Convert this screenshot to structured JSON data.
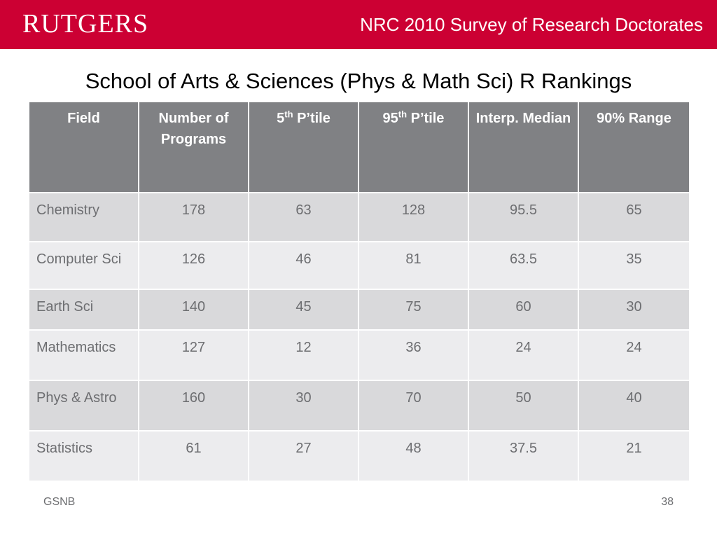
{
  "header": {
    "logo_text": "RUTGERS",
    "title": "NRC 2010 Survey of Research Doctorates"
  },
  "slide": {
    "title": "School of Arts & Sciences (Phys & Math Sci) R Rankings"
  },
  "table": {
    "headers": {
      "field": "Field",
      "programs": "Number of Programs",
      "p5_num": "5",
      "p5_sup": "th",
      "p5_rest": " P’tile",
      "p95_num": "95",
      "p95_sup": "th",
      "p95_rest": " P’tile",
      "median": "Interp. Median",
      "range": "90% Range"
    },
    "rows": [
      {
        "field": "Chemistry",
        "programs": "178",
        "p5": "63",
        "p95": "128",
        "median": "95.5",
        "range": "65"
      },
      {
        "field": "Computer Sci",
        "programs": "126",
        "p5": "46",
        "p95": "81",
        "median": "63.5",
        "range": "35"
      },
      {
        "field": "Earth Sci",
        "programs": "140",
        "p5": "45",
        "p95": "75",
        "median": "60",
        "range": "30"
      },
      {
        "field": "Mathematics",
        "programs": "127",
        "p5": "12",
        "p95": "36",
        "median": "24",
        "range": "24"
      },
      {
        "field": "Phys & Astro",
        "programs": "160",
        "p5": "30",
        "p95": "70",
        "median": "50",
        "range": "40"
      },
      {
        "field": "Statistics",
        "programs": "61",
        "p5": "27",
        "p95": "48",
        "median": "37.5",
        "range": "21"
      }
    ]
  },
  "footer": {
    "left": "GSNB",
    "page_number": "38"
  },
  "colors": {
    "brand_red": "#cc0033",
    "header_gray": "#808184",
    "row_dark": "#d9d9db",
    "row_light": "#ececee"
  }
}
